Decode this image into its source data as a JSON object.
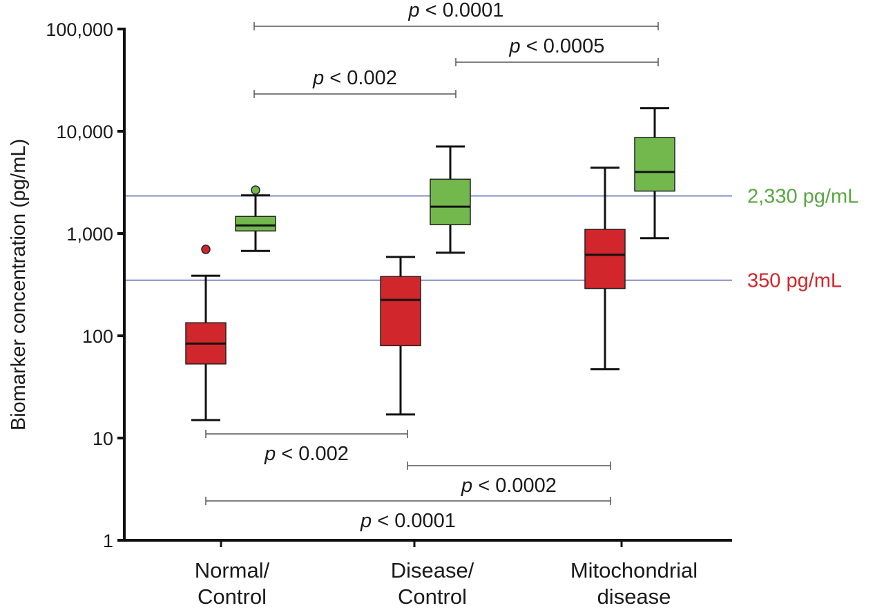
{
  "chart_data": {
    "type": "box",
    "title": "",
    "ylabel": "Biomarker concentration (pg/mL)",
    "xlabel": "",
    "yscale": "log",
    "ylim": [
      1,
      100000
    ],
    "grid": false,
    "yticks": [
      1,
      10,
      100,
      1000,
      10000,
      100000
    ],
    "ytick_labels": [
      "1",
      "10",
      "100",
      "1,000",
      "10,000",
      "100,000"
    ],
    "categories": [
      {
        "label_lines": [
          "Normal/",
          "Control"
        ]
      },
      {
        "label_lines": [
          "Disease/",
          "Control"
        ]
      },
      {
        "label_lines": [
          "Mitochondrial",
          "disease"
        ]
      }
    ],
    "series": [
      {
        "name": "red",
        "color": "#d1262b",
        "boxes": [
          {
            "category": 0,
            "whisker_low": 15,
            "q1": 53,
            "median": 84,
            "q3": 134,
            "whisker_high": 386,
            "outliers": [
              700
            ]
          },
          {
            "category": 1,
            "whisker_low": 17,
            "q1": 80,
            "median": 224,
            "q3": 380,
            "whisker_high": 590,
            "outliers": []
          },
          {
            "category": 2,
            "whisker_low": 47,
            "q1": 290,
            "median": 620,
            "q3": 1100,
            "whisker_high": 4400,
            "outliers": []
          }
        ]
      },
      {
        "name": "green",
        "color": "#72b84d",
        "boxes": [
          {
            "category": 0,
            "whisker_low": 675,
            "q1": 1060,
            "median": 1200,
            "q3": 1470,
            "whisker_high": 2360,
            "outliers": [
              2660
            ]
          },
          {
            "category": 1,
            "whisker_low": 650,
            "q1": 1220,
            "median": 1830,
            "q3": 3400,
            "whisker_high": 7100,
            "outliers": []
          },
          {
            "category": 2,
            "whisker_low": 900,
            "q1": 2600,
            "median": 4000,
            "q3": 8700,
            "whisker_high": 16800,
            "outliers": []
          }
        ]
      }
    ],
    "reference_lines": [
      {
        "value": 2330,
        "label": "2,330 pg/mL",
        "label_color": "#5aa642",
        "line_color": "#5a64b4"
      },
      {
        "value": 350,
        "label": "350 pg/mL",
        "label_color": "#d1262b",
        "line_color": "#5a64b4"
      }
    ],
    "significance": {
      "green": [
        {
          "from": 0,
          "to": 2,
          "text_p": "p",
          "text_rest": " < 0.0001",
          "level": 1
        },
        {
          "from": 1,
          "to": 2,
          "text_p": "p",
          "text_rest": " < 0.0005",
          "level": 2
        },
        {
          "from": 0,
          "to": 1,
          "text_p": "p",
          "text_rest": " < 0.002",
          "level": 3
        }
      ],
      "red": [
        {
          "from": 0,
          "to": 1,
          "text_p": "p",
          "text_rest": " < 0.002",
          "level": 1
        },
        {
          "from": 1,
          "to": 2,
          "text_p": "p",
          "text_rest": " < 0.0002",
          "level": 2
        },
        {
          "from": 0,
          "to": 2,
          "text_p": "p",
          "text_rest": " < 0.0001",
          "level": 3
        }
      ]
    }
  }
}
